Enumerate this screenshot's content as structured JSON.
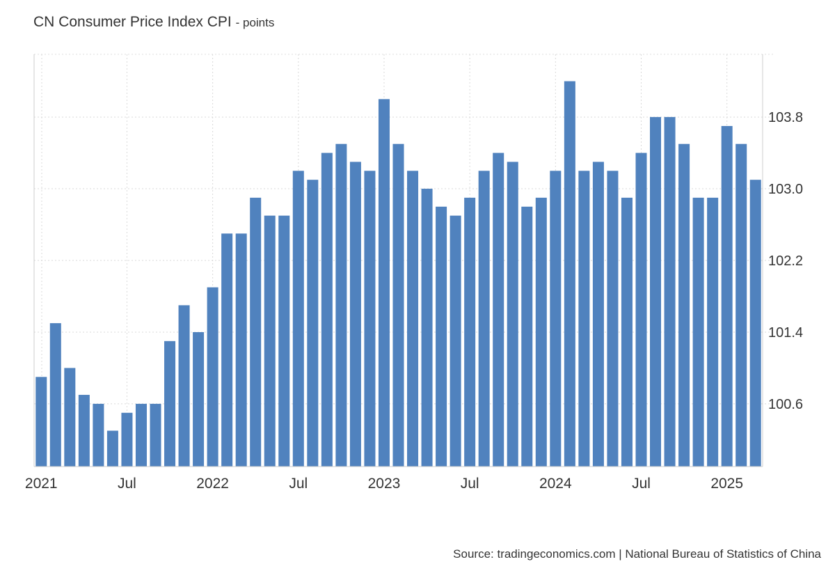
{
  "chart_data": {
    "type": "bar",
    "title": "CN Consumer Price Index CPI",
    "subtitle": "- points",
    "xlabel": "",
    "ylabel": "",
    "ylim": [
      99.9,
      104.5
    ],
    "y_ticks": [
      100.6,
      101.4,
      102.2,
      103.0,
      103.8
    ],
    "y_tick_labels": [
      "100.6",
      "101.4",
      "102.2",
      "103.0",
      "103.8"
    ],
    "x_tick_labels": [
      {
        "label": "2021",
        "index": 0
      },
      {
        "label": "Jul",
        "index": 6
      },
      {
        "label": "2022",
        "index": 12
      },
      {
        "label": "Jul",
        "index": 18
      },
      {
        "label": "2023",
        "index": 24
      },
      {
        "label": "Jul",
        "index": 30
      },
      {
        "label": "2024",
        "index": 36
      },
      {
        "label": "Jul",
        "index": 42
      },
      {
        "label": "2025",
        "index": 48
      }
    ],
    "color": "#5082be",
    "series": [
      {
        "name": "CPI",
        "values": [
          100.9,
          101.5,
          101.0,
          100.7,
          100.6,
          100.3,
          100.5,
          100.6,
          100.6,
          101.3,
          101.7,
          101.4,
          101.9,
          102.5,
          102.5,
          102.9,
          102.7,
          102.7,
          103.2,
          103.1,
          103.4,
          103.5,
          103.3,
          103.2,
          104.0,
          103.5,
          103.2,
          103.0,
          102.8,
          102.7,
          102.9,
          103.2,
          103.4,
          103.3,
          102.8,
          102.9,
          103.2,
          104.2,
          103.2,
          103.3,
          103.2,
          102.9,
          103.4,
          103.8,
          103.8,
          103.5,
          102.9,
          102.9,
          103.7,
          103.5,
          103.1
        ]
      }
    ]
  },
  "source": "Source: tradingeconomics.com | National Bureau of Statistics of China"
}
